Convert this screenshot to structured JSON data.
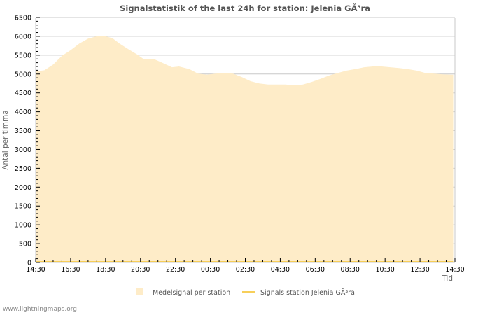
{
  "chart_data": {
    "type": "area",
    "title": "Signalstatistik of the last 24h for station: Jelenia GÃ³ra",
    "xlabel": "Tid",
    "ylabel": "Antal per timma",
    "ylim": [
      0,
      6500
    ],
    "yticks": [
      0,
      500,
      1000,
      1500,
      2000,
      2500,
      3000,
      3500,
      4000,
      4500,
      5000,
      5500,
      6000,
      6500
    ],
    "xtick_labels": [
      "14:30",
      "16:30",
      "18:30",
      "20:30",
      "22:30",
      "00:30",
      "02:30",
      "04:30",
      "06:30",
      "08:30",
      "10:30",
      "12:30",
      "14:30"
    ],
    "grid": true,
    "legend_position": "bottom",
    "x_hours": [
      0,
      0.5,
      1,
      1.5,
      2,
      2.5,
      3,
      3.5,
      4,
      4.4,
      4.8,
      5.3,
      5.8,
      6.2,
      6.8,
      7.2,
      7.8,
      8.2,
      8.8,
      9.3,
      9.8,
      10.3,
      10.8,
      11.3,
      11.8,
      12.3,
      12.8,
      13.3,
      13.8,
      14.3,
      14.8,
      15.3,
      15.8,
      16.3,
      16.8,
      17.3,
      17.8,
      18.3,
      18.8,
      19.3,
      19.8,
      20.3,
      20.8,
      21.3,
      21.8,
      22.3,
      22.8,
      23.3,
      23.8
    ],
    "series": [
      {
        "name": "Medelsignal per station",
        "kind": "area",
        "color": "#feecc8",
        "values": [
          5070,
          5100,
          5250,
          5480,
          5630,
          5810,
          5940,
          6000,
          6000,
          5950,
          5810,
          5660,
          5520,
          5390,
          5390,
          5310,
          5180,
          5200,
          5130,
          5010,
          4980,
          5010,
          5030,
          5010,
          4920,
          4810,
          4750,
          4720,
          4720,
          4720,
          4700,
          4720,
          4790,
          4870,
          4960,
          5030,
          5090,
          5130,
          5180,
          5200,
          5200,
          5180,
          5160,
          5130,
          5090,
          5030,
          5010,
          4990,
          4980
        ]
      },
      {
        "name": "Signals station Jelenia GÃ³ra",
        "kind": "line",
        "color": "#f7cf5a",
        "values": [
          0,
          0,
          0,
          0,
          0,
          0,
          0,
          0,
          0,
          0,
          0,
          0,
          0,
          0,
          0,
          0,
          0,
          0,
          0,
          0,
          0,
          0,
          0,
          0,
          0,
          0,
          0,
          0,
          0,
          0,
          0,
          0,
          0,
          0,
          0,
          0,
          0,
          0,
          0,
          0,
          0,
          0,
          0,
          0,
          0,
          0,
          0,
          0,
          0
        ]
      }
    ]
  },
  "legend": {
    "items": [
      {
        "label": "Medelsignal per station"
      },
      {
        "label": "Signals station Jelenia GÃ³ra"
      }
    ]
  },
  "footer": {
    "text": "www.lightningmaps.org"
  }
}
